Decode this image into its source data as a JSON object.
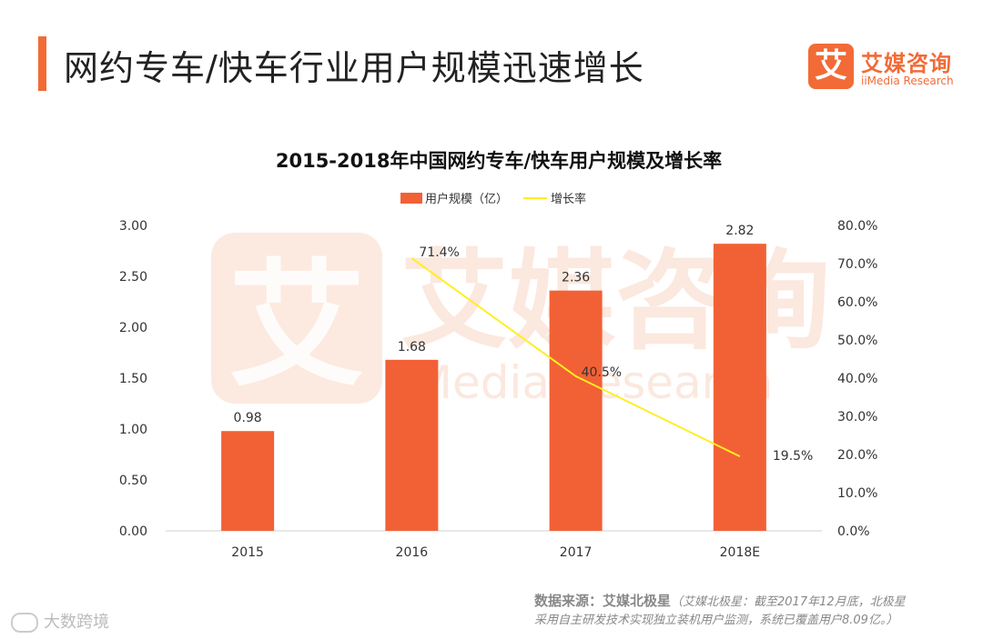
{
  "page": {
    "title": "网约专车/快车行业用户规模迅速增长",
    "accent_color": "#f26b36"
  },
  "logo": {
    "mark": "艾",
    "cn": "艾媒咨询",
    "en": "iiMedia Research",
    "color": "#f26b36"
  },
  "watermark": {
    "mark": "艾",
    "cn": "艾媒咨询",
    "en": "iMedia Research"
  },
  "chart_data": {
    "type": "bar",
    "title": "2015-2018年中国网约专车/快车用户规模及增长率",
    "categories": [
      "2015",
      "2016",
      "2017",
      "2018E"
    ],
    "series": [
      {
        "name": "用户规模（亿）",
        "type": "bar",
        "axis": "left",
        "color": "#f26135",
        "values": [
          0.98,
          1.68,
          2.36,
          2.82
        ],
        "labels": [
          "0.98",
          "1.68",
          "2.36",
          "2.82"
        ]
      },
      {
        "name": "增长率",
        "type": "line",
        "axis": "right",
        "color": "#ffee22",
        "values": [
          null,
          71.4,
          40.5,
          19.5
        ],
        "labels": [
          "",
          "71.4%",
          "40.5%",
          "19.5%"
        ]
      }
    ],
    "y_left": {
      "min": 0,
      "max": 3,
      "ticks": [
        "0.00",
        "0.50",
        "1.00",
        "1.50",
        "2.00",
        "2.50",
        "3.00"
      ]
    },
    "y_right": {
      "min": 0,
      "max": 80,
      "ticks": [
        "0.0%",
        "10.0%",
        "20.0%",
        "30.0%",
        "40.0%",
        "50.0%",
        "60.0%",
        "70.0%",
        "80.0%"
      ]
    },
    "legend_position": "top-center",
    "grid": false
  },
  "source": {
    "label": "数据来源：艾媒北极星",
    "note_line1": "（艾媒北极星：截至2017年12月底，北极星",
    "note_line2": "采用自主研发技术实现独立装机用户监测，系统已覆盖用户8.09亿。）"
  },
  "corner": {
    "text": "大数跨境"
  }
}
